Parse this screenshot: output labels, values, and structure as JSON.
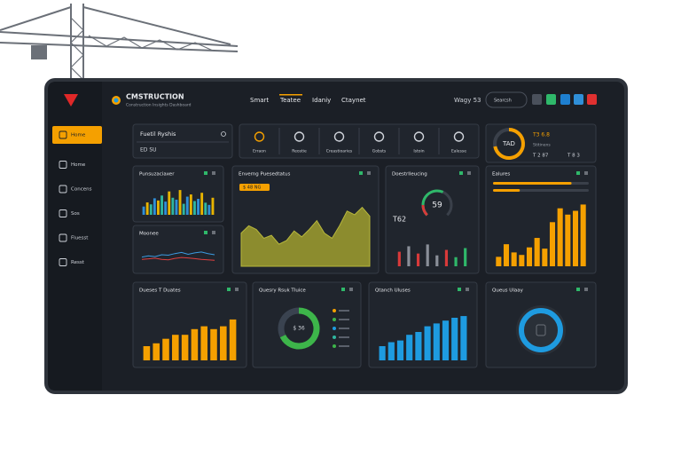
{
  "header": {
    "brand": "CMSTRUCTION",
    "tagline": "Construction Insights Dashboard",
    "nav": [
      "Smart",
      "Teatee",
      "Idaniy",
      "Ctaynet"
    ],
    "user": "Wagy 53",
    "search": "Searcsh"
  },
  "sidebar": [
    "Home",
    "Home",
    "Concens",
    "Sos",
    "Fluesst",
    "Resst"
  ],
  "search_panel": {
    "title": "Fuetil Ryshis",
    "value": "ED SU"
  },
  "toolbar": [
    "Erraon",
    "Reostie",
    "Creastioaries",
    "Gobsts",
    "Istoin",
    "Ealesse"
  ],
  "summary": {
    "value": 72,
    "range": [
      0,
      100
    ],
    "center": "TAD",
    "stats": [
      "T3 6.8",
      "T 2 87",
      "T 8 3"
    ],
    "caption": "Stitinens"
  },
  "panels": [
    {
      "title": "Punsuzaciaxer",
      "type": "bar",
      "colors": [
        "#2f8fd8",
        "#e8b400",
        "#2fb7a0"
      ],
      "values": [
        30,
        45,
        38,
        60,
        52,
        70,
        48,
        85,
        62,
        55,
        90,
        40,
        66,
        74,
        50,
        58,
        80,
        44,
        36,
        62
      ],
      "ylim": [
        0,
        100
      ]
    },
    {
      "title": "Moonee",
      "type": "line",
      "series": [
        {
          "color": "#3b9be0",
          "values": [
            40,
            45,
            42,
            50,
            48,
            55,
            60,
            52,
            58,
            62,
            55,
            50
          ]
        },
        {
          "color": "#e04040",
          "values": [
            30,
            32,
            35,
            30,
            28,
            34,
            38,
            36,
            33,
            30,
            28,
            26
          ]
        }
      ],
      "ylim": [
        0,
        100
      ]
    },
    {
      "title": "Enverng Puesedtatus",
      "type": "area",
      "badge": "$ 48 NG",
      "color": "#8c8c2e",
      "values": [
        45,
        55,
        50,
        38,
        42,
        30,
        35,
        48,
        40,
        50,
        62,
        45,
        38,
        55,
        75,
        70,
        80,
        68
      ],
      "ylim": [
        0,
        100
      ]
    },
    {
      "title": "Doestrlleucing",
      "type": "gauge",
      "value": 59,
      "range": [
        0,
        100
      ],
      "label": "T62",
      "bars": [
        40,
        55,
        35,
        60,
        30,
        45,
        25,
        50
      ],
      "bar_colors": [
        "#d83a3a",
        "#8a8f99",
        "#d83a3a",
        "#8a8f99",
        "#8a8f99",
        "#d83a3a",
        "#2fb86a",
        "#2fb86a"
      ],
      "ylim": [
        0,
        100
      ]
    },
    {
      "title": "Ealures",
      "type": "bar",
      "progress": [
        82,
        28
      ],
      "color": "#f5a000",
      "values": [
        15,
        35,
        22,
        18,
        30,
        45,
        28,
        70,
        92,
        82,
        88,
        98
      ],
      "ylim": [
        0,
        100
      ]
    },
    {
      "title": "Dueses T Duates",
      "type": "bar",
      "color": "#f5a000",
      "values": [
        25,
        30,
        38,
        45,
        45,
        55,
        60,
        55,
        60,
        72
      ],
      "ylim": [
        0,
        100
      ]
    },
    {
      "title": "Quesry Rsuk Tluice",
      "type": "donut",
      "center": "$ 36",
      "values": [
        68,
        32
      ],
      "colors": [
        "#3db54a",
        "#3a4350"
      ]
    },
    {
      "title": "Qtanch Uluses",
      "type": "bar",
      "color": "#1e9be0",
      "values": [
        25,
        32,
        35,
        45,
        50,
        60,
        65,
        70,
        75,
        78
      ],
      "ylim": [
        0,
        100
      ]
    },
    {
      "title": "Queus Ulaay",
      "type": "ring"
    }
  ]
}
